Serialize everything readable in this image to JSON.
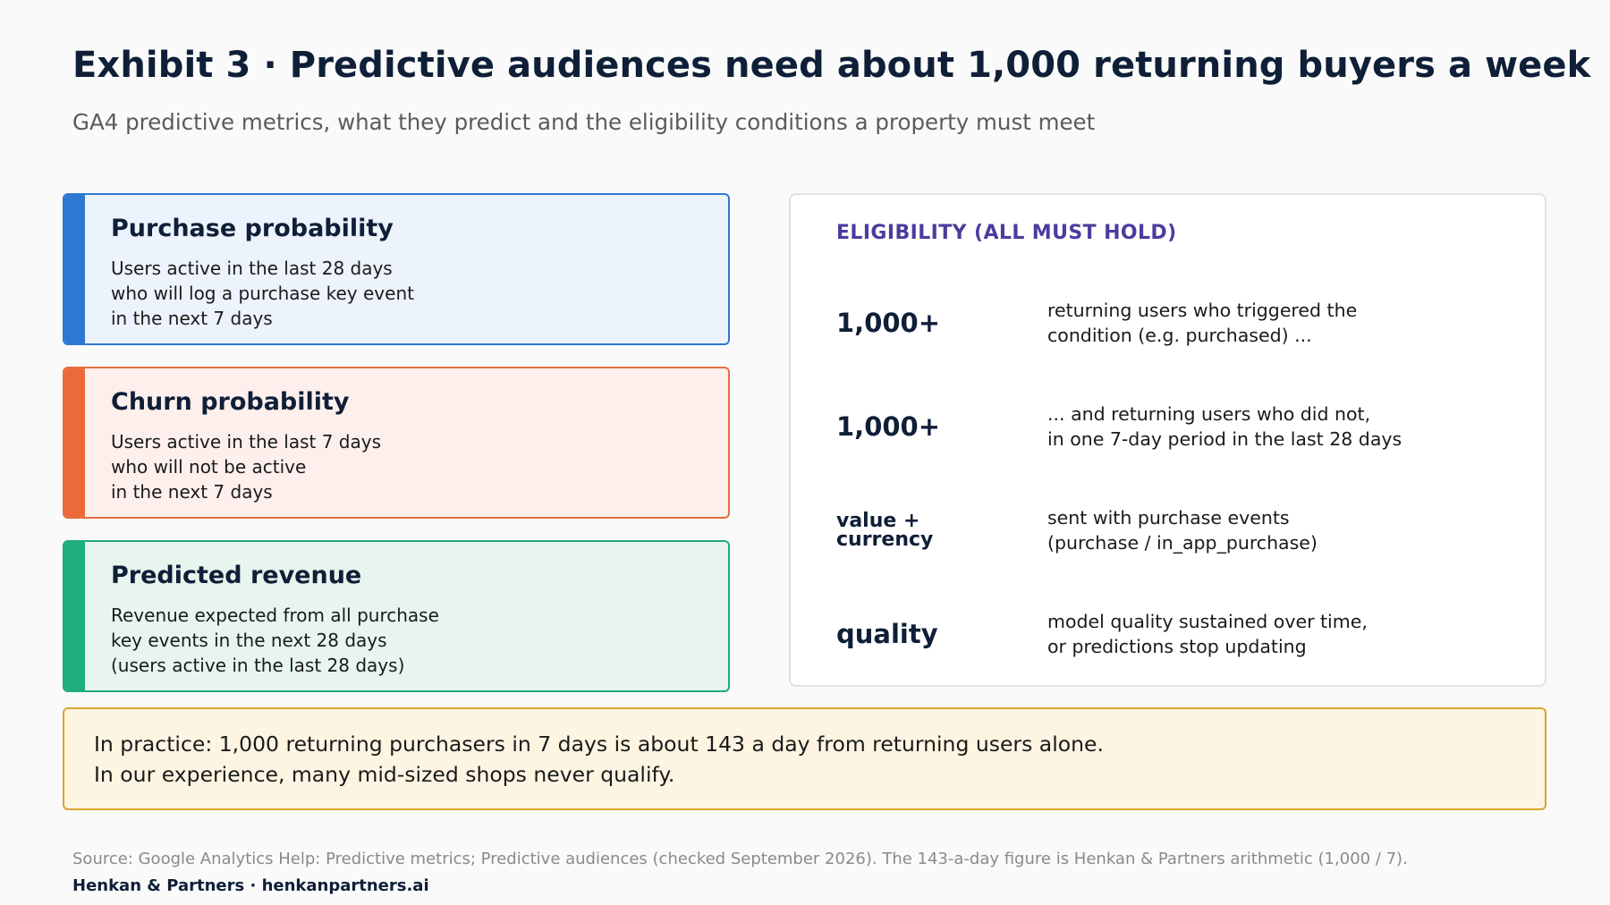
{
  "header": {
    "title": "Exhibit 3 · Predictive audiences need about 1,000 returning buyers a week",
    "subtitle": "GA4 predictive metrics, what they predict and the eligibility conditions a property must meet"
  },
  "metrics": [
    {
      "title": "Purchase probability",
      "lines": [
        "Users active in the last 28 days",
        "who will log a purchase key event",
        "in the next 7 days"
      ],
      "color": "#2e78d2"
    },
    {
      "title": "Churn probability",
      "lines": [
        "Users active in the last 7 days",
        "who will not be active",
        "in the next 7 days"
      ],
      "color": "#ec6a39"
    },
    {
      "title": "Predicted revenue",
      "lines": [
        "Revenue expected from all purchase",
        "key events in the next 28 days",
        "(users active in the last 28 days)"
      ],
      "color": "#1eaf7c"
    }
  ],
  "eligibility": {
    "heading": "ELIGIBILITY (ALL MUST HOLD)",
    "rows": [
      {
        "key": [
          "1,000+"
        ],
        "desc": [
          "returning users who triggered the",
          "condition (e.g. purchased) ..."
        ]
      },
      {
        "key": [
          "1,000+"
        ],
        "desc": [
          "... and returning users who did not,",
          "in one 7-day period in the last 28 days"
        ]
      },
      {
        "key": [
          "value +",
          "currency"
        ],
        "desc": [
          "sent with purchase events",
          "(purchase / in_app_purchase)"
        ]
      },
      {
        "key": [
          "quality"
        ],
        "desc": [
          "model quality sustained over time,",
          "or predictions stop updating"
        ]
      }
    ]
  },
  "callout": {
    "lines": [
      "In practice: 1,000 returning purchasers in 7 days is about 143 a day from returning users alone.",
      "In our experience, many mid-sized shops never qualify."
    ]
  },
  "footer": {
    "source": "Source: Google Analytics Help: Predictive metrics; Predictive audiences (checked September 2026). The 143-a-day figure is Henkan & Partners arithmetic (1,000 / 7).",
    "brand": "Henkan & Partners · henkanpartners.ai"
  }
}
